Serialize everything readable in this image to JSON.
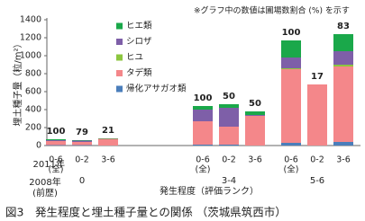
{
  "chart_data": {
    "type": "bar",
    "stacked": true,
    "note": "※グラフ中の数値は圃場数割合 (%) を示す",
    "y_label": "埋土種子量（粒/m²）",
    "groups": [
      "0",
      "3-4",
      "5-6"
    ],
    "categories": [
      "0-6",
      "0-2",
      "3-6",
      "0-6",
      "0-2",
      "3-6",
      "0-6",
      "0-2",
      "3-6"
    ],
    "category_sublabels": [
      "(全)",
      null,
      null,
      "(全)",
      null,
      null,
      "(全)",
      null,
      null
    ],
    "row_label_2011": "2011年",
    "row_label_2008": [
      "2008年",
      "(前歴)"
    ],
    "group_axis_label": "発生程度（評価ランク）",
    "annotations": [
      100,
      79,
      21,
      100,
      50,
      50,
      100,
      17,
      83
    ],
    "ylim": [
      0,
      1400
    ],
    "yticks": [
      0,
      200,
      400,
      600,
      800,
      1000,
      1200,
      1400
    ],
    "series": [
      {
        "name": "帰化アサガオ類",
        "color": "#4a7ebb",
        "values": [
          5,
          5,
          0,
          10,
          10,
          0,
          30,
          0,
          40
        ]
      },
      {
        "name": "タデ類",
        "color": "#f4878a",
        "values": [
          45,
          35,
          75,
          260,
          200,
          330,
          820,
          680,
          840
        ]
      },
      {
        "name": "ヒユ",
        "color": "#8cc63f",
        "values": [
          0,
          0,
          0,
          0,
          0,
          0,
          10,
          0,
          20
        ]
      },
      {
        "name": "シロザ",
        "color": "#7e5fa8",
        "values": [
          10,
          15,
          0,
          130,
          210,
          10,
          120,
          0,
          150
        ]
      },
      {
        "name": "ヒエ類",
        "color": "#1aa84a",
        "values": [
          10,
          5,
          5,
          40,
          40,
          40,
          190,
          0,
          190
        ]
      }
    ],
    "caption": "図3　発生程度と埋土種子量との関係 （茨城県筑西市）"
  }
}
